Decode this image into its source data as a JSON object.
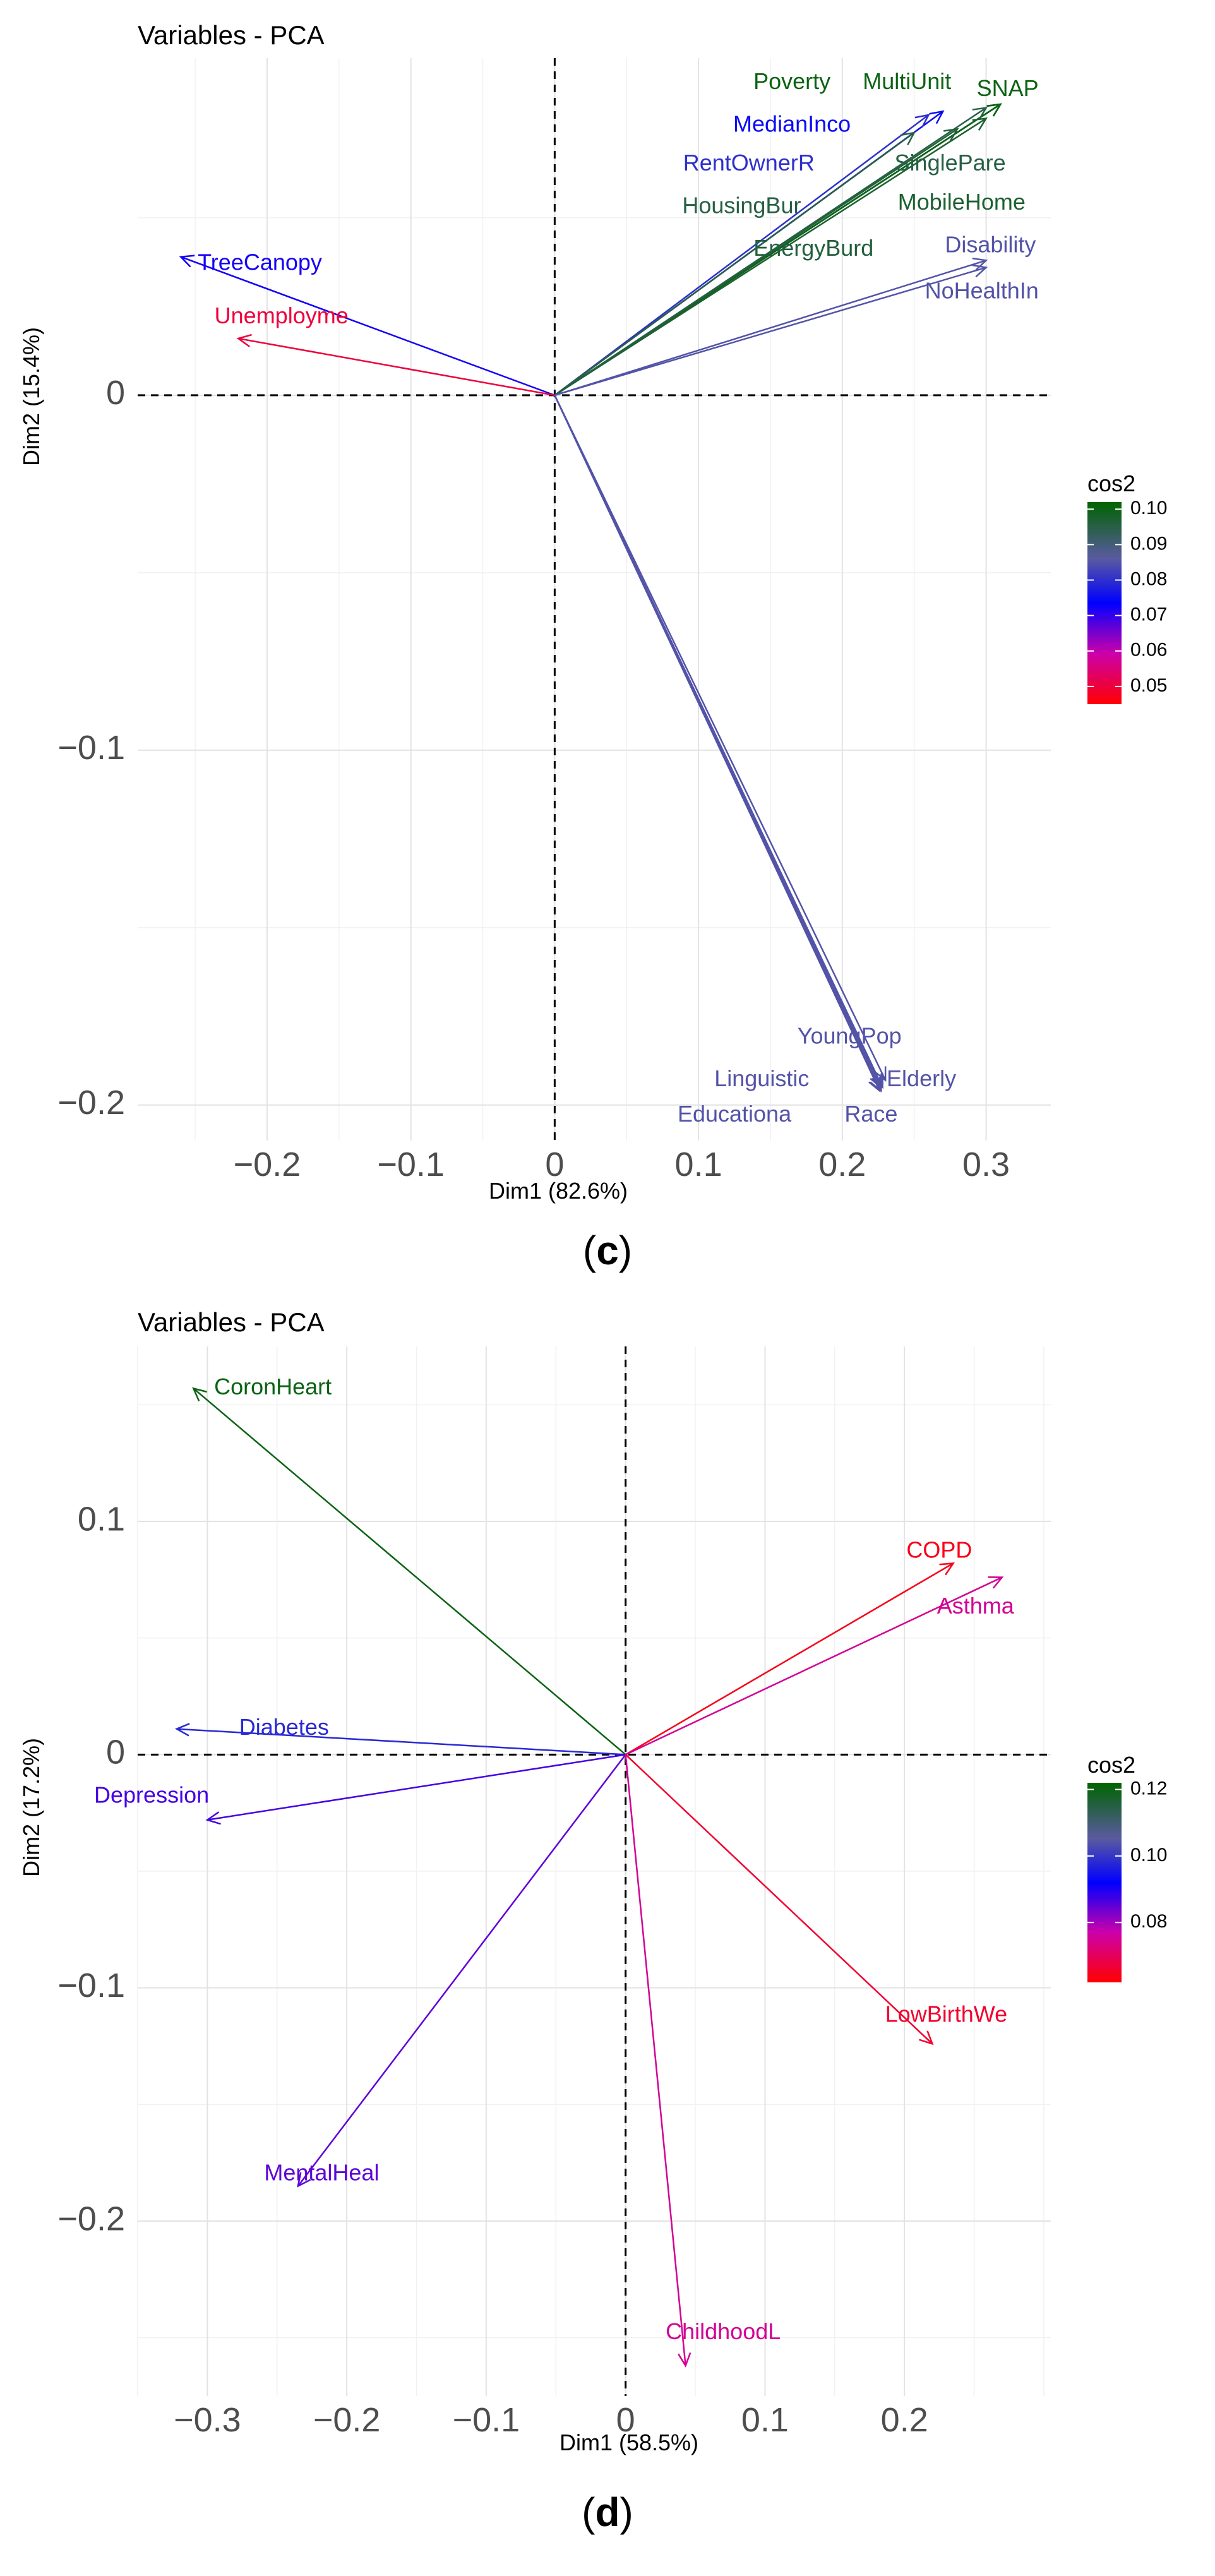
{
  "chart_data": [
    {
      "type": "pca-variable-plot",
      "title": "Variables - PCA",
      "xlabel": "Dim1 (82.6%)",
      "ylabel": "Dim2 (15.4%)",
      "xlim": [
        -0.29,
        0.345
      ],
      "ylim": [
        -0.21,
        0.095
      ],
      "xticks": [
        -0.2,
        -0.1,
        0,
        0.1,
        0.2,
        0.3
      ],
      "xtick_labels": [
        "−0.2",
        "−0.1",
        "0",
        "0.1",
        "0.2",
        "0.3"
      ],
      "yticks": [
        -0.2,
        -0.1,
        0
      ],
      "ytick_labels": [
        "−0.2",
        "−0.1",
        "0"
      ],
      "grid": true,
      "legend": {
        "title": "cos2",
        "position": "right",
        "range": [
          0.045,
          0.102
        ],
        "ticks": [
          0.05,
          0.06,
          0.07,
          0.08,
          0.09,
          0.1
        ],
        "tick_labels": [
          "0.05",
          "0.06",
          "0.07",
          "0.08",
          "0.09",
          "0.10"
        ]
      },
      "caption": "(c)",
      "caption_letter": "c",
      "caption_open": "(",
      "caption_close": ")",
      "variables": [
        {
          "name": "TreeCanopy",
          "x": -0.26,
          "y": 0.039,
          "lx": -0.205,
          "ly": 0.037,
          "cos2": 0.072
        },
        {
          "name": "Unemployme",
          "x": -0.22,
          "y": 0.016,
          "lx": -0.19,
          "ly": 0.022,
          "cos2": 0.05
        },
        {
          "name": "Poverty",
          "x": 0.31,
          "y": 0.082,
          "lx": 0.165,
          "ly": 0.088,
          "cos2": 0.1
        },
        {
          "name": "MultiUnit",
          "x": 0.31,
          "y": 0.082,
          "lx": 0.245,
          "ly": 0.088,
          "cos2": 0.1
        },
        {
          "name": "SNAP",
          "x": 0.31,
          "y": 0.082,
          "lx": 0.315,
          "ly": 0.086,
          "cos2": 0.1
        },
        {
          "name": "MedianInco",
          "x": 0.27,
          "y": 0.08,
          "lx": 0.165,
          "ly": 0.076,
          "cos2": 0.075
        },
        {
          "name": "RentOwnerR",
          "x": 0.26,
          "y": 0.079,
          "lx": 0.135,
          "ly": 0.065,
          "cos2": 0.08
        },
        {
          "name": "SinglePare",
          "x": 0.3,
          "y": 0.081,
          "lx": 0.275,
          "ly": 0.065,
          "cos2": 0.095
        },
        {
          "name": "HousingBur",
          "x": 0.25,
          "y": 0.074,
          "lx": 0.13,
          "ly": 0.053,
          "cos2": 0.095
        },
        {
          "name": "MobileHome",
          "x": 0.3,
          "y": 0.078,
          "lx": 0.283,
          "ly": 0.054,
          "cos2": 0.097
        },
        {
          "name": "EnergyBurd",
          "x": 0.28,
          "y": 0.075,
          "lx": 0.18,
          "ly": 0.041,
          "cos2": 0.096
        },
        {
          "name": "Disability",
          "x": 0.3,
          "y": 0.038,
          "lx": 0.303,
          "ly": 0.042,
          "cos2": 0.085
        },
        {
          "name": "NoHealthIn",
          "x": 0.3,
          "y": 0.036,
          "lx": 0.297,
          "ly": 0.029,
          "cos2": 0.085
        },
        {
          "name": "YoungPop",
          "x": 0.23,
          "y": -0.193,
          "lx": 0.205,
          "ly": -0.181,
          "cos2": 0.085
        },
        {
          "name": "Linguistic",
          "x": 0.228,
          "y": -0.195,
          "lx": 0.144,
          "ly": -0.193,
          "cos2": 0.085
        },
        {
          "name": "Elderly",
          "x": 0.227,
          "y": -0.195,
          "lx": 0.255,
          "ly": -0.193,
          "cos2": 0.085
        },
        {
          "name": "Educationa",
          "x": 0.226,
          "y": -0.196,
          "lx": 0.125,
          "ly": -0.203,
          "cos2": 0.085
        },
        {
          "name": "Race",
          "x": 0.227,
          "y": -0.196,
          "lx": 0.22,
          "ly": -0.203,
          "cos2": 0.085
        }
      ]
    },
    {
      "type": "pca-variable-plot",
      "title": "Variables - PCA",
      "xlabel": "Dim1 (58.5%)",
      "ylabel": "Dim2 (17.2%)",
      "xlim": [
        -0.35,
        0.305
      ],
      "ylim": [
        -0.275,
        0.175
      ],
      "xticks": [
        -0.3,
        -0.2,
        -0.1,
        0,
        0.1,
        0.2
      ],
      "xtick_labels": [
        "−0.3",
        "−0.2",
        "−0.1",
        "0",
        "0.1",
        "0.2"
      ],
      "yticks": [
        -0.2,
        -0.1,
        0,
        0.1
      ],
      "ytick_labels": [
        "−0.2",
        "−0.1",
        "0",
        "0.1"
      ],
      "grid": true,
      "legend": {
        "title": "cos2",
        "position": "right",
        "range": [
          0.062,
          0.122
        ],
        "ticks": [
          0.08,
          0.1,
          0.12
        ],
        "tick_labels": [
          "0.08",
          "0.10",
          "0.12"
        ]
      },
      "caption": "(d)",
      "caption_letter": "d",
      "caption_open": "(",
      "caption_close": ")",
      "variables": [
        {
          "name": "CoronHeart",
          "x": -0.31,
          "y": 0.157,
          "lx": -0.253,
          "ly": 0.157,
          "cos2": 0.12
        },
        {
          "name": "COPD",
          "x": 0.235,
          "y": 0.082,
          "lx": 0.225,
          "ly": 0.087,
          "cos2": 0.064
        },
        {
          "name": "Asthma",
          "x": 0.27,
          "y": 0.076,
          "lx": 0.251,
          "ly": 0.063,
          "cos2": 0.075
        },
        {
          "name": "Diabetes",
          "x": -0.322,
          "y": 0.011,
          "lx": -0.245,
          "ly": 0.011,
          "cos2": 0.098
        },
        {
          "name": "Depression",
          "x": -0.3,
          "y": -0.028,
          "lx": -0.34,
          "ly": -0.018,
          "cos2": 0.087
        },
        {
          "name": "LowBirthWe",
          "x": 0.22,
          "y": -0.124,
          "lx": 0.23,
          "ly": -0.112,
          "cos2": 0.066
        },
        {
          "name": "MentalHeal",
          "x": -0.235,
          "y": -0.185,
          "lx": -0.218,
          "ly": -0.18,
          "cos2": 0.085
        },
        {
          "name": "ChildhoodL",
          "x": 0.043,
          "y": -0.262,
          "lx": 0.07,
          "ly": -0.248,
          "cos2": 0.075
        }
      ]
    }
  ]
}
